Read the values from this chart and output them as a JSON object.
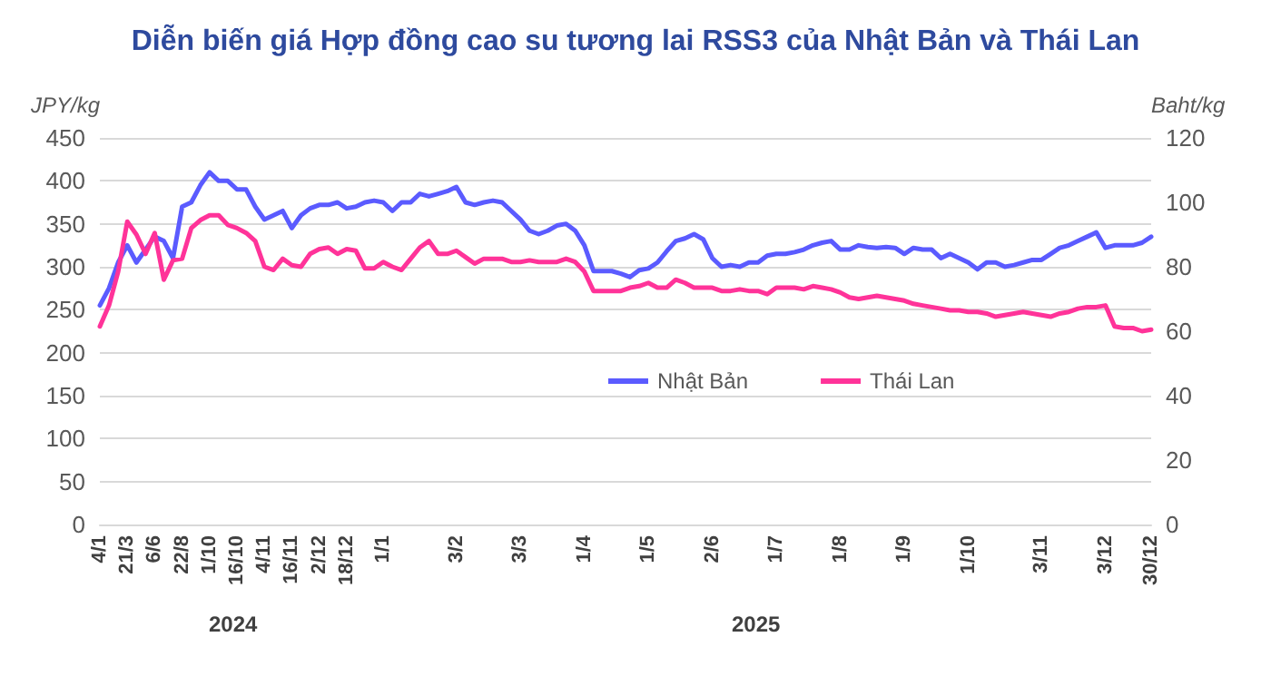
{
  "chart_data": {
    "type": "line",
    "title": "Diễn biến giá Hợp đồng cao su tương lai RSS3 của Nhật Bản và Thái Lan",
    "ylabel": "JPY/kg",
    "y2label": "Baht/kg",
    "categories": [
      "4/1",
      null,
      null,
      "21/3",
      null,
      null,
      "6/6",
      null,
      null,
      "22/8",
      null,
      null,
      "1/10",
      null,
      null,
      "16/10",
      null,
      null,
      "4/11",
      null,
      null,
      "16/11",
      null,
      null,
      "2/12",
      null,
      null,
      "18/12",
      null,
      null,
      null,
      "1/1",
      null,
      null,
      null,
      null,
      null,
      null,
      null,
      "3/2",
      null,
      null,
      null,
      null,
      null,
      null,
      "3/3",
      null,
      null,
      null,
      null,
      null,
      null,
      "1/4",
      null,
      null,
      null,
      null,
      null,
      null,
      "1/5",
      null,
      null,
      null,
      null,
      null,
      null,
      "2/6",
      null,
      null,
      null,
      null,
      null,
      null,
      "1/7",
      null,
      null,
      null,
      null,
      null,
      null,
      "1/8",
      null,
      null,
      null,
      null,
      null,
      null,
      "1/9",
      null,
      null,
      null,
      null,
      null,
      null,
      "1/10",
      null,
      null,
      null,
      null,
      null,
      null,
      null,
      "3/11",
      null,
      null,
      null,
      null,
      null,
      null,
      "3/12",
      null,
      null,
      null,
      null,
      "30/12"
    ],
    "series": [
      {
        "name": "Nhật Bản",
        "color": "#5b5bff",
        "values": [
          255,
          275,
          305,
          325,
          305,
          320,
          335,
          330,
          310,
          370,
          375,
          395,
          410,
          400,
          400,
          390,
          390,
          370,
          355,
          360,
          365,
          345,
          360,
          368,
          372,
          372,
          375,
          368,
          370,
          375,
          377,
          375,
          365,
          375,
          375,
          385,
          382,
          385,
          388,
          393,
          375,
          372,
          375,
          377,
          375,
          365,
          355,
          342,
          338,
          342,
          348,
          350,
          342,
          325,
          295,
          295,
          295,
          292,
          288,
          296,
          298,
          305,
          318,
          330,
          333,
          338,
          332,
          310,
          300,
          302,
          300,
          305,
          305,
          313,
          315,
          315,
          317,
          320,
          325,
          328,
          330,
          320,
          320,
          325,
          323,
          322,
          323,
          322,
          315,
          322,
          320,
          320,
          310,
          315,
          310,
          305,
          297,
          305,
          305,
          300,
          302,
          305,
          308,
          308,
          315,
          322,
          325,
          330,
          335,
          340,
          322,
          325,
          325,
          325,
          328,
          335
        ]
      },
      {
        "name": "Thái Lan",
        "color": "#ff3399",
        "axis": "y2",
        "values": [
          61.5,
          68,
          78.5,
          94,
          90,
          84,
          90.5,
          76,
          82,
          82.5,
          92,
          94.5,
          96,
          96,
          93,
          92,
          90.5,
          88,
          80,
          79,
          82.5,
          80.5,
          80,
          84,
          85.5,
          86,
          84,
          85.5,
          85,
          79.5,
          79.5,
          81.5,
          80,
          79,
          82.5,
          86,
          88,
          84,
          84,
          85,
          83,
          81,
          82.5,
          82.5,
          82.5,
          81.5,
          81.5,
          82,
          81.5,
          81.5,
          81.5,
          82.5,
          81.5,
          78.5,
          72.5,
          72.5,
          72.5,
          72.5,
          73.5,
          74,
          75,
          73.5,
          73.5,
          76,
          75,
          73.5,
          73.5,
          73.5,
          72.5,
          72.5,
          73,
          72.5,
          72.5,
          71.5,
          73.5,
          73.5,
          73.5,
          73,
          74,
          73.5,
          73,
          72,
          70.5,
          70,
          70.5,
          71,
          70.5,
          70,
          69.5,
          68.5,
          68,
          67.5,
          67,
          66.5,
          66.5,
          66,
          66,
          65.5,
          64.5,
          65,
          65.5,
          66,
          65.5,
          65,
          64.5,
          65.5,
          66,
          67,
          67.5,
          67.5,
          68,
          61.5,
          61,
          61,
          60,
          60.5
        ]
      }
    ],
    "ylim": [
      0,
      450
    ],
    "yticks": [
      0,
      50,
      100,
      150,
      200,
      250,
      300,
      350,
      400,
      450
    ],
    "y2lim": [
      0,
      120
    ],
    "y2ticks": [
      0,
      20,
      40,
      60,
      80,
      100,
      120
    ],
    "grid": "y",
    "legend": "center",
    "marker": "none",
    "line_style": "solid",
    "annotations": [
      "2024",
      "2025"
    ]
  }
}
